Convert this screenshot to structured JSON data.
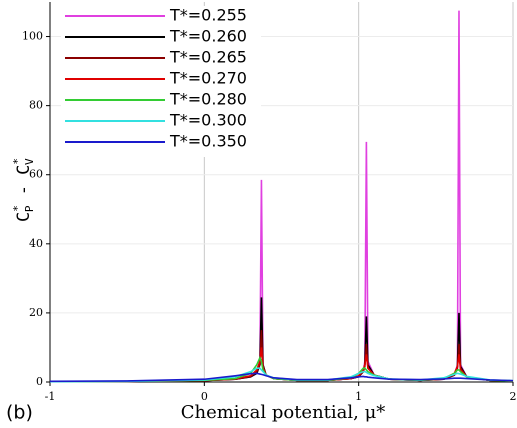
{
  "chart_data": {
    "type": "line",
    "x_label": "Chemical potential, μ*",
    "y_label": [
      "C",
      "*",
      "P",
      " - C",
      "*",
      "V"
    ],
    "annotation": "(b)",
    "x": [
      -1,
      -0.5,
      0,
      0.2,
      0.3,
      0.34,
      0.36,
      0.37,
      0.38,
      0.4,
      0.45,
      0.6,
      0.8,
      0.95,
      1.0,
      1.03,
      1.04,
      1.05,
      1.06,
      1.1,
      1.2,
      1.4,
      1.55,
      1.62,
      1.64,
      1.65,
      1.66,
      1.7,
      1.85,
      2
    ],
    "series": [
      {
        "name": "T*=0.255",
        "color": "#e040e0",
        "values": [
          0.1,
          0.2,
          0.4,
          0.8,
          1.5,
          2.5,
          5,
          58.5,
          5,
          2,
          1,
          0.5,
          0.5,
          1,
          1.5,
          3,
          6,
          69.5,
          6,
          2,
          0.8,
          0.5,
          0.8,
          2,
          5,
          107.5,
          5,
          1.5,
          0.5,
          0.3
        ]
      },
      {
        "name": "T*=0.260",
        "color": "#000000",
        "values": [
          0.1,
          0.2,
          0.4,
          0.8,
          1.5,
          2.5,
          5,
          24.5,
          5,
          2,
          1,
          0.5,
          0.5,
          1,
          1.5,
          3,
          5,
          19,
          5,
          2,
          0.8,
          0.5,
          0.8,
          2,
          4.5,
          20,
          4.5,
          1.5,
          0.5,
          0.3
        ]
      },
      {
        "name": "T*=0.265",
        "color": "#8b0000",
        "values": [
          0.1,
          0.2,
          0.4,
          0.8,
          1.6,
          3,
          5,
          15,
          4.5,
          2,
          1,
          0.5,
          0.5,
          1,
          1.6,
          3,
          4.5,
          11,
          4,
          2,
          0.8,
          0.5,
          0.8,
          2,
          4,
          11,
          4,
          1.5,
          0.5,
          0.3
        ]
      },
      {
        "name": "T*=0.270",
        "color": "#e00000",
        "values": [
          0.1,
          0.2,
          0.4,
          0.9,
          1.8,
          3.5,
          6,
          10,
          4,
          2,
          1,
          0.5,
          0.5,
          1,
          1.8,
          3.5,
          5,
          8,
          4,
          2,
          0.8,
          0.5,
          0.9,
          2.5,
          4.5,
          8,
          3.5,
          1.5,
          0.5,
          0.3
        ]
      },
      {
        "name": "T*=0.280",
        "color": "#33cc33",
        "values": [
          0.1,
          0.2,
          0.5,
          1,
          2.5,
          5,
          7,
          6,
          3.5,
          2,
          1,
          0.5,
          0.5,
          1.2,
          2.5,
          4,
          4,
          3.5,
          3,
          2,
          0.8,
          0.5,
          1,
          2.5,
          3.5,
          3.5,
          3,
          1.5,
          0.5,
          0.3
        ]
      },
      {
        "name": "T*=0.300",
        "color": "#33e0e0",
        "values": [
          0.1,
          0.2,
          0.6,
          1.5,
          3,
          4,
          4,
          3.5,
          3,
          2,
          1.2,
          0.6,
          0.6,
          1.5,
          2.5,
          3,
          3,
          2.8,
          2.5,
          1.8,
          0.9,
          0.6,
          1.2,
          2.2,
          2.5,
          2.4,
          2.3,
          1.6,
          0.6,
          0.4
        ]
      },
      {
        "name": "T*=0.350",
        "color": "#1a1acc",
        "values": [
          0.2,
          0.3,
          0.8,
          1.8,
          2.4,
          2.5,
          2.3,
          2.2,
          2.1,
          1.8,
          1.2,
          0.7,
          0.7,
          1.2,
          1.5,
          1.6,
          1.5,
          1.5,
          1.4,
          1.2,
          0.8,
          0.7,
          0.9,
          1.1,
          1.1,
          1.1,
          1.1,
          1,
          0.6,
          0.4
        ]
      }
    ],
    "xlim": [
      -1,
      2
    ],
    "ylim": [
      0,
      110
    ],
    "xticks": [
      -1,
      0,
      1,
      2
    ],
    "yticks": [
      0,
      20,
      40,
      60,
      80,
      100
    ],
    "grid": true,
    "legend": "upper left"
  }
}
